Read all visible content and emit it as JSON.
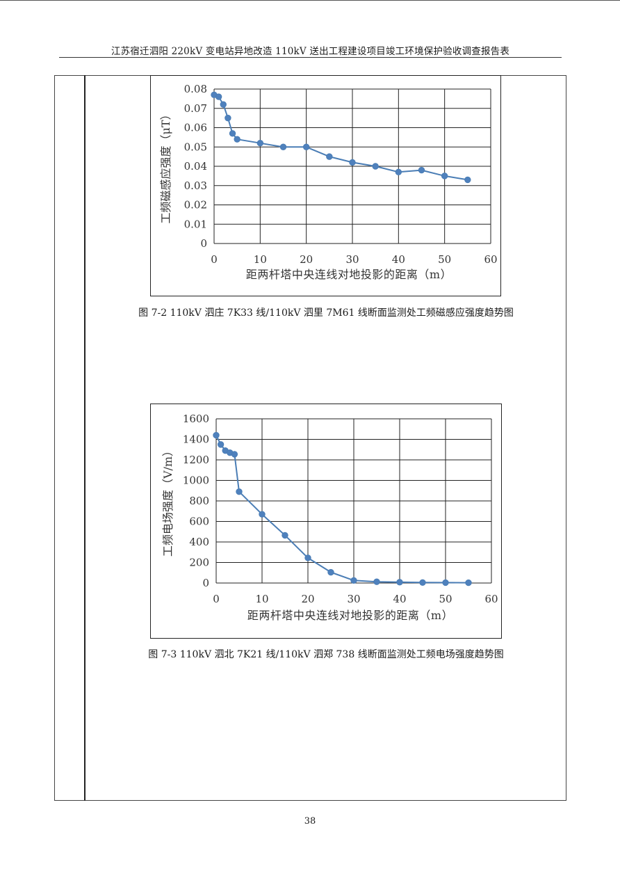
{
  "header": {
    "title": "江苏宿迁泗阳 220kV 变电站异地改造 110kV 送出工程建设项目竣工环境保护验收调查报告表"
  },
  "captions": {
    "figure_7_2": "图 7-2 110kV 泗庄 7K33 线/110kV 泗里 7M61 线断面监测处工频磁感应强度趋势图",
    "figure_7_3": "图 7-3 110kV 泗北 7K21 线/110kV 泗郑 738 线断面监测处工频电场强度趋势图"
  },
  "page_number": "38",
  "colors": {
    "series": "#4a7db5",
    "marker": "#4f81bd"
  },
  "chart_data": [
    {
      "type": "line",
      "title": "",
      "xlabel": "距两杆塔中央连线对地投影的距离（m）",
      "ylabel": "工频磁感应强度（μT）",
      "xlim": [
        0,
        60
      ],
      "ylim": [
        0,
        0.08
      ],
      "xticks": [
        "0",
        "10",
        "20",
        "30",
        "40",
        "50",
        "60"
      ],
      "yticks": [
        "0",
        "0.01",
        "0.02",
        "0.03",
        "0.04",
        "0.05",
        "0.06",
        "0.07",
        "0.08"
      ],
      "grid": true,
      "series": [
        {
          "x": [
            0,
            1,
            2,
            3,
            4,
            5,
            10,
            15,
            20,
            25,
            30,
            35,
            40,
            45,
            50,
            55
          ],
          "y": [
            0.077,
            0.076,
            0.072,
            0.065,
            0.057,
            0.054,
            0.052,
            0.05,
            0.05,
            0.045,
            0.042,
            0.04,
            0.037,
            0.038,
            0.035,
            0.033
          ]
        }
      ]
    },
    {
      "type": "line",
      "title": "",
      "xlabel": "距两杆塔中央连线对地投影的距离（m）",
      "ylabel": "工频电场强度（V/m）",
      "xlim": [
        0,
        60
      ],
      "ylim": [
        0,
        1600
      ],
      "xticks": [
        "0",
        "10",
        "20",
        "30",
        "40",
        "50",
        "60"
      ],
      "yticks": [
        "0",
        "200",
        "400",
        "600",
        "800",
        "1000",
        "1200",
        "1400",
        "1600"
      ],
      "grid": true,
      "series": [
        {
          "x": [
            0,
            1,
            2,
            3,
            4,
            5,
            10,
            15,
            20,
            25,
            30,
            35,
            40,
            45,
            50,
            55
          ],
          "y": [
            1440,
            1350,
            1290,
            1270,
            1255,
            890,
            670,
            465,
            245,
            105,
            25,
            12,
            8,
            5,
            4,
            3
          ]
        }
      ]
    }
  ]
}
